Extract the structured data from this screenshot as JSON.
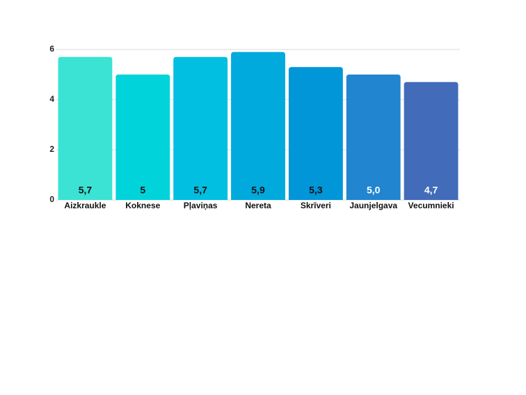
{
  "chart_data": {
    "type": "bar",
    "categories": [
      "Aizkraukle",
      "Koknese",
      "Pļaviņas",
      "Nereta",
      "Skrīveri",
      "Jaunjelgava",
      "Vecumnieki"
    ],
    "values": [
      5.7,
      5,
      5.7,
      5.9,
      5.3,
      5.0,
      4.7
    ],
    "value_labels": [
      "5,7",
      "5",
      "5,7",
      "5,9",
      "5,3",
      "5,0",
      "4,7"
    ],
    "colors": [
      "#3ae3d4",
      "#00d4da",
      "#00bfe0",
      "#00aadd",
      "#0096d8",
      "#2185d0",
      "#426cba"
    ],
    "value_label_colors": [
      "#111111",
      "#111111",
      "#111111",
      "#111111",
      "#111111",
      "#ffffff",
      "#ffffff"
    ],
    "ylim": [
      0,
      6
    ],
    "yticks": [
      0,
      2,
      4,
      6
    ],
    "grid": true
  }
}
